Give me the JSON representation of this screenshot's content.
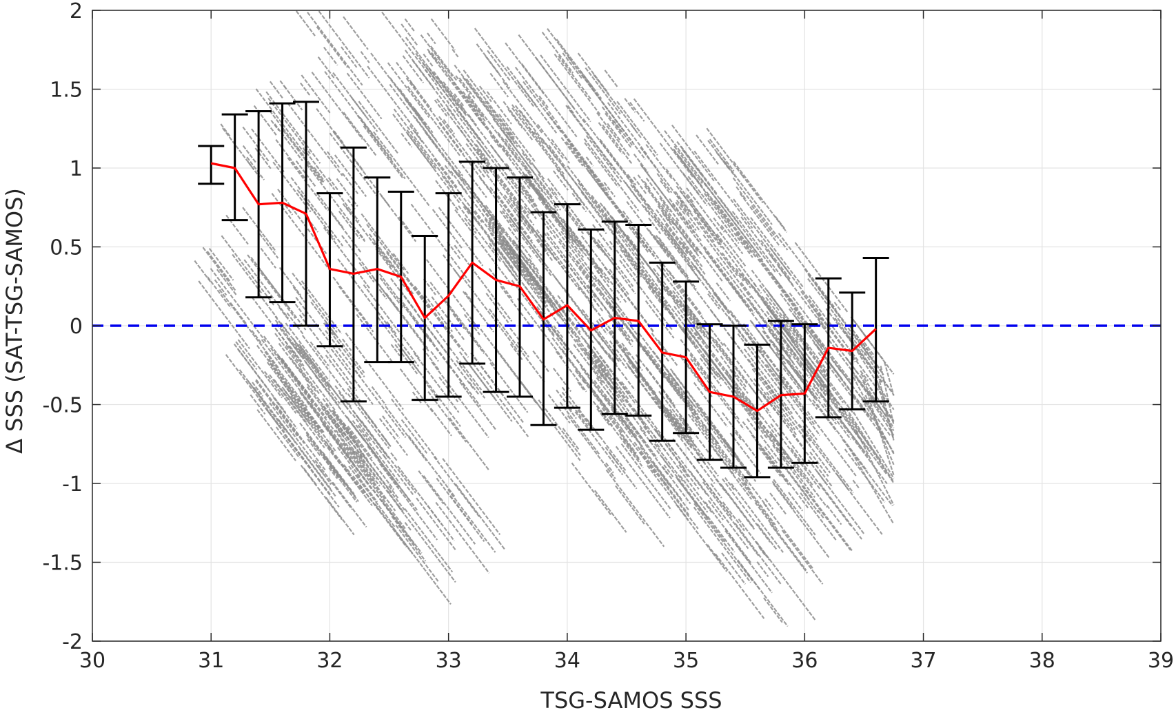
{
  "chart_data": {
    "type": "scatter",
    "xlabel": "TSG-SAMOS SSS",
    "ylabel": "Δ SSS (SAT-TSG-SAMOS)",
    "xlim": [
      30,
      39
    ],
    "ylim": [
      -2,
      2
    ],
    "x_ticks": [
      "30",
      "31",
      "32",
      "33",
      "34",
      "35",
      "36",
      "37",
      "38",
      "39"
    ],
    "y_ticks": [
      "2",
      "1.5",
      "1",
      "0.5",
      "0",
      "-0.5",
      "-1",
      "-1.5",
      "-2"
    ],
    "grid": true,
    "scatter": {
      "color": "#8c8c8c",
      "description_of_pattern": "dense streaks of points sloping down with slope about -1, x from ~31.1 to ~36.7",
      "streaks": [
        {
          "x0": 31.3,
          "y0": 0.0,
          "x1": 32.2,
          "y1": -0.9
        },
        {
          "x0": 31.0,
          "y0": 0.6,
          "x1": 32.9,
          "y1": -1.2
        },
        {
          "x0": 31.3,
          "y0": 1.5,
          "x1": 33.2,
          "y1": -0.5
        },
        {
          "x0": 31.7,
          "y0": 2.0,
          "x1": 34.6,
          "y1": -1.0
        },
        {
          "x0": 32.3,
          "y0": 2.0,
          "x1": 35.4,
          "y1": -1.3
        },
        {
          "x0": 32.8,
          "y0": 2.0,
          "x1": 35.9,
          "y1": -1.2
        },
        {
          "x0": 33.4,
          "y0": 2.0,
          "x1": 36.4,
          "y1": -1.0
        },
        {
          "x0": 34.0,
          "y0": 1.5,
          "x1": 36.6,
          "y1": -0.5
        },
        {
          "x0": 32.6,
          "y0": 1.8,
          "x1": 35.0,
          "y1": -0.8
        },
        {
          "x0": 33.0,
          "y0": 1.2,
          "x1": 35.8,
          "y1": -1.6
        },
        {
          "x0": 34.8,
          "y0": 1.2,
          "x1": 36.5,
          "y1": -0.5
        },
        {
          "x0": 33.6,
          "y0": 1.7,
          "x1": 36.3,
          "y1": -1.0
        }
      ]
    },
    "series": [
      {
        "type": "errorbar",
        "color": "#000000",
        "x": [
          31.0,
          31.2,
          31.4,
          31.6,
          31.8,
          32.0,
          32.2,
          32.4,
          32.6,
          32.8,
          33.0,
          33.2,
          33.4,
          33.6,
          33.8,
          34.0,
          34.2,
          34.4,
          34.6,
          34.8,
          35.0,
          35.2,
          35.4,
          35.6,
          35.8,
          36.0,
          36.2,
          36.4,
          36.6
        ],
        "lower": [
          0.9,
          0.67,
          0.18,
          0.15,
          0.0,
          -0.13,
          -0.48,
          -0.23,
          -0.23,
          -0.47,
          -0.45,
          -0.24,
          -0.42,
          -0.45,
          -0.63,
          -0.52,
          -0.66,
          -0.56,
          -0.57,
          -0.73,
          -0.68,
          -0.85,
          -0.9,
          -0.96,
          -0.9,
          -0.87,
          -0.58,
          -0.53,
          -0.48
        ],
        "upper": [
          1.14,
          1.34,
          1.36,
          1.41,
          1.42,
          0.84,
          1.13,
          0.94,
          0.85,
          0.57,
          0.84,
          1.04,
          1.0,
          0.94,
          0.72,
          0.77,
          0.61,
          0.66,
          0.64,
          0.4,
          0.28,
          0.01,
          0.0,
          -0.12,
          0.03,
          0.01,
          0.3,
          0.21,
          0.43
        ]
      },
      {
        "type": "line",
        "color": "#ff0000",
        "x": [
          31.0,
          31.2,
          31.4,
          31.6,
          31.8,
          32.0,
          32.2,
          32.4,
          32.6,
          32.8,
          33.0,
          33.2,
          33.4,
          33.6,
          33.8,
          34.0,
          34.2,
          34.4,
          34.6,
          34.8,
          35.0,
          35.2,
          35.4,
          35.6,
          35.8,
          36.0,
          36.2,
          36.4,
          36.6
        ],
        "y": [
          1.03,
          1.0,
          0.77,
          0.78,
          0.71,
          0.36,
          0.33,
          0.36,
          0.31,
          0.05,
          0.19,
          0.4,
          0.29,
          0.25,
          0.04,
          0.13,
          -0.03,
          0.05,
          0.03,
          -0.17,
          -0.2,
          -0.42,
          -0.45,
          -0.54,
          -0.44,
          -0.43,
          -0.14,
          -0.16,
          -0.02
        ]
      },
      {
        "type": "hline",
        "color": "#0000ee",
        "style": "dashed",
        "y": 0
      }
    ]
  }
}
